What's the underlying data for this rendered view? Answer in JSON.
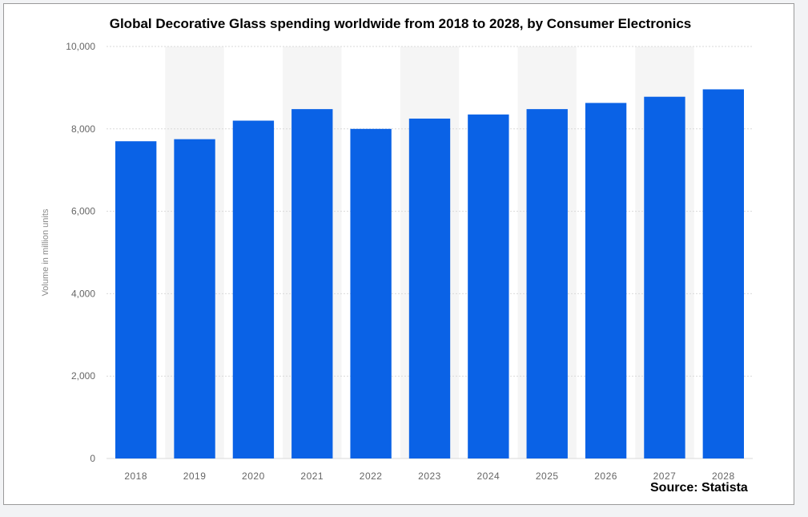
{
  "title": "Global Decorative Glass spending worldwide from 2018 to 2028, by Consumer Electronics",
  "source": "Source: Statista",
  "colors": {
    "bar": "#0a62e6",
    "band": "#f5f5f5",
    "grid": "#d9d9d9"
  },
  "chart_data": {
    "type": "bar",
    "title": "Global Decorative Glass spending worldwide from 2018 to 2028, by Consumer Electronics",
    "xlabel": "",
    "ylabel": "Volume in million units",
    "categories": [
      "2018",
      "2019",
      "2020",
      "2021",
      "2022",
      "2023",
      "2024",
      "2025",
      "2026",
      "2027",
      "2028"
    ],
    "values": [
      7700,
      7750,
      8200,
      8480,
      8000,
      8250,
      8350,
      8480,
      8630,
      8780,
      8960
    ],
    "ylim": [
      0,
      10000
    ],
    "yticks": [
      0,
      2000,
      4000,
      6000,
      8000,
      10000
    ],
    "ytick_labels": [
      "0",
      "2,000",
      "4,000",
      "6,000",
      "8,000",
      "10,000"
    ],
    "grid": true,
    "legend": "none"
  }
}
